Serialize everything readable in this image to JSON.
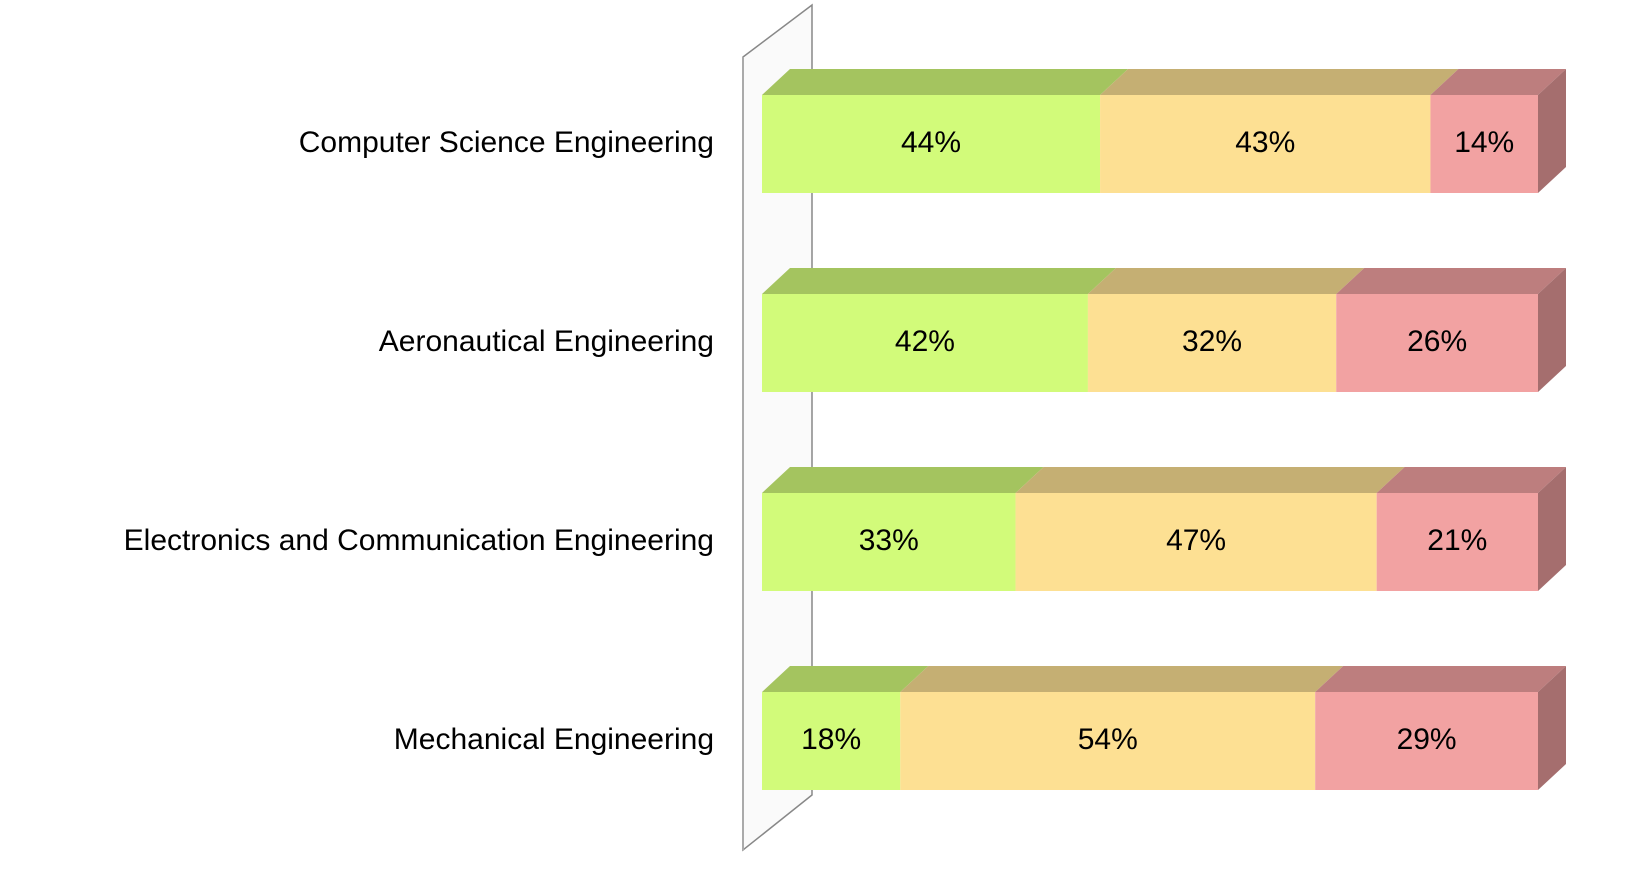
{
  "chart_data": {
    "type": "bar",
    "orientation": "horizontal",
    "stacking": "percent",
    "categories": [
      "Computer Science Engineering",
      "Aeronautical Engineering",
      "Electronics and Communication Engineering",
      "Mechanical Engineering"
    ],
    "series": [
      {
        "color": "#d2fb7a",
        "values": [
          44,
          42,
          33,
          18
        ],
        "value_labels": [
          "44%",
          "42%",
          "33%",
          "18%"
        ]
      },
      {
        "color": "#fde093",
        "values": [
          43,
          32,
          47,
          54
        ],
        "value_labels": [
          "43%",
          "32%",
          "47%",
          "54%"
        ]
      },
      {
        "color": "#f2a2a2",
        "values": [
          14,
          26,
          21,
          29
        ],
        "value_labels": [
          "14%",
          "26%",
          "21%",
          "29%"
        ]
      }
    ]
  }
}
